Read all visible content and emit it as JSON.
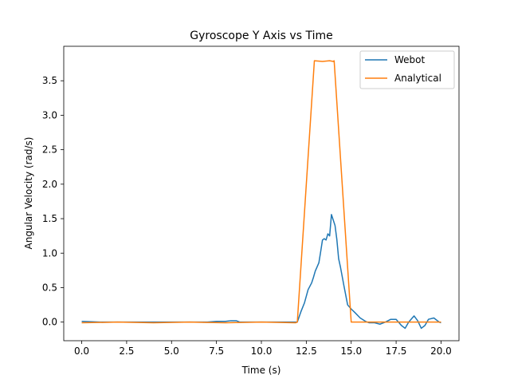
{
  "chart_data": {
    "type": "line",
    "title": "Gyroscope Y Axis vs Time",
    "xlabel": "Time (s)",
    "ylabel": "Angular Velocity (rad/s)",
    "xlim": [
      -1.0,
      21.0
    ],
    "ylim": [
      -0.27,
      4.0
    ],
    "xticks": [
      0.0,
      2.5,
      5.0,
      7.5,
      10.0,
      12.5,
      15.0,
      17.5,
      20.0
    ],
    "xtick_labels": [
      "0.0",
      "2.5",
      "5.0",
      "7.5",
      "10.0",
      "12.5",
      "15.0",
      "17.5",
      "20.0"
    ],
    "yticks": [
      0.0,
      0.5,
      1.0,
      1.5,
      2.0,
      2.5,
      3.0,
      3.5
    ],
    "ytick_labels": [
      "0.0",
      "0.5",
      "1.0",
      "1.5",
      "2.0",
      "2.5",
      "3.0",
      "3.5"
    ],
    "grid": false,
    "legend_position": "upper right",
    "series": [
      {
        "name": "Webot",
        "color": "#1f77b4",
        "x": [
          0.0,
          1.0,
          2.0,
          3.0,
          4.0,
          5.0,
          6.0,
          7.0,
          7.5,
          8.0,
          8.3,
          8.6,
          8.8,
          9.5,
          10.0,
          11.0,
          12.0,
          12.2,
          12.4,
          12.6,
          12.8,
          12.9,
          13.0,
          13.1,
          13.2,
          13.3,
          13.4,
          13.5,
          13.6,
          13.7,
          13.8,
          13.9,
          14.0,
          14.1,
          14.2,
          14.3,
          14.4,
          14.6,
          14.8,
          15.0,
          15.2,
          15.5,
          15.8,
          16.0,
          16.3,
          16.6,
          16.9,
          17.2,
          17.5,
          17.8,
          18.0,
          18.2,
          18.5,
          18.7,
          18.9,
          19.1,
          19.3,
          19.6,
          19.9,
          20.0
        ],
        "y": [
          0.01,
          0.0,
          0.0,
          0.0,
          0.0,
          0.0,
          0.0,
          0.0,
          0.01,
          0.01,
          0.02,
          0.02,
          0.0,
          0.0,
          0.0,
          0.0,
          0.0,
          0.15,
          0.28,
          0.47,
          0.57,
          0.65,
          0.74,
          0.8,
          0.86,
          1.02,
          1.19,
          1.21,
          1.19,
          1.28,
          1.25,
          1.56,
          1.48,
          1.4,
          1.2,
          0.92,
          0.8,
          0.52,
          0.25,
          0.19,
          0.14,
          0.06,
          0.01,
          -0.01,
          -0.01,
          -0.03,
          0.0,
          0.04,
          0.04,
          -0.05,
          -0.09,
          0.0,
          0.09,
          0.02,
          -0.09,
          -0.05,
          0.04,
          0.06,
          0.0,
          -0.01
        ]
      },
      {
        "name": "Analytical",
        "color": "#ff7f0e",
        "x": [
          0.0,
          2.0,
          4.0,
          6.0,
          8.0,
          10.0,
          11.9,
          12.0,
          12.95,
          13.4,
          13.8,
          14.0,
          14.05,
          15.0,
          15.2,
          20.0
        ],
        "y": [
          -0.01,
          0.0,
          -0.01,
          0.0,
          -0.01,
          0.0,
          -0.01,
          0.0,
          3.79,
          3.78,
          3.79,
          3.78,
          3.79,
          0.0,
          0.0,
          0.0
        ]
      }
    ]
  }
}
